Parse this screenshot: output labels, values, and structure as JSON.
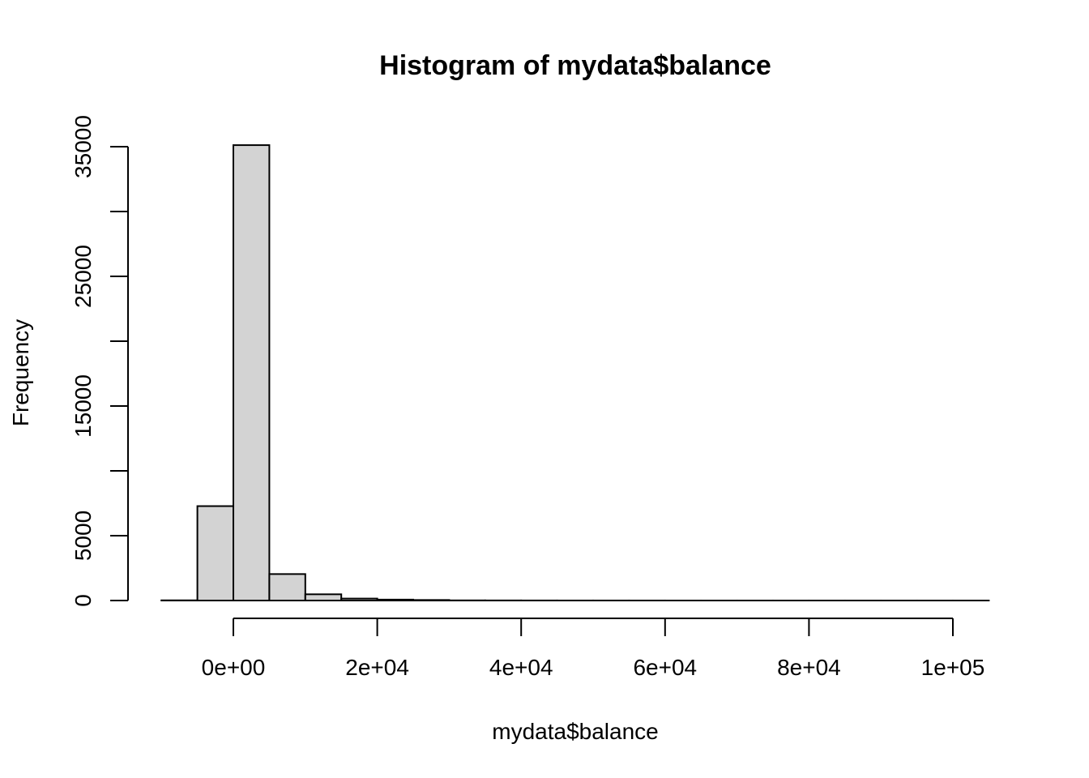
{
  "chart_data": {
    "type": "bar",
    "title": "Histogram of mydata$balance",
    "xlabel": "mydata$balance",
    "ylabel": "Frequency",
    "bin_width": 5000,
    "bins": [
      {
        "start": -10000,
        "end": -5000,
        "count": 15
      },
      {
        "start": -5000,
        "end": 0,
        "count": 7280
      },
      {
        "start": 0,
        "end": 5000,
        "count": 35120
      },
      {
        "start": 5000,
        "end": 10000,
        "count": 2040
      },
      {
        "start": 10000,
        "end": 15000,
        "count": 480
      },
      {
        "start": 15000,
        "end": 20000,
        "count": 150
      },
      {
        "start": 20000,
        "end": 25000,
        "count": 70
      },
      {
        "start": 25000,
        "end": 30000,
        "count": 40
      },
      {
        "start": 30000,
        "end": 35000,
        "count": 12
      },
      {
        "start": 35000,
        "end": 40000,
        "count": 8
      },
      {
        "start": 40000,
        "end": 45000,
        "count": 5
      },
      {
        "start": 45000,
        "end": 50000,
        "count": 3
      },
      {
        "start": 50000,
        "end": 55000,
        "count": 3
      },
      {
        "start": 55000,
        "end": 60000,
        "count": 2
      },
      {
        "start": 60000,
        "end": 65000,
        "count": 1
      },
      {
        "start": 65000,
        "end": 70000,
        "count": 1
      },
      {
        "start": 70000,
        "end": 75000,
        "count": 1
      },
      {
        "start": 75000,
        "end": 80000,
        "count": 1
      },
      {
        "start": 80000,
        "end": 85000,
        "count": 1
      },
      {
        "start": 85000,
        "end": 90000,
        "count": 1
      },
      {
        "start": 90000,
        "end": 95000,
        "count": 1
      },
      {
        "start": 95000,
        "end": 100000,
        "count": 1
      },
      {
        "start": 100000,
        "end": 105000,
        "count": 1
      }
    ],
    "xlim": [
      -10000,
      105000
    ],
    "ylim": [
      0,
      35000
    ],
    "x_ticks": [
      {
        "value": 0,
        "label": "0e+00"
      },
      {
        "value": 20000,
        "label": "2e+04"
      },
      {
        "value": 40000,
        "label": "4e+04"
      },
      {
        "value": 60000,
        "label": "6e+04"
      },
      {
        "value": 80000,
        "label": "8e+04"
      },
      {
        "value": 100000,
        "label": "1e+05"
      }
    ],
    "y_ticks": [
      0,
      5000,
      10000,
      15000,
      20000,
      25000,
      30000,
      35000
    ],
    "y_tick_labels": [
      "0",
      "5000",
      "15000",
      "25000",
      "35000"
    ],
    "grid": false,
    "colors": {
      "bar_fill": "#d3d3d3",
      "bar_stroke": "#000000"
    }
  }
}
